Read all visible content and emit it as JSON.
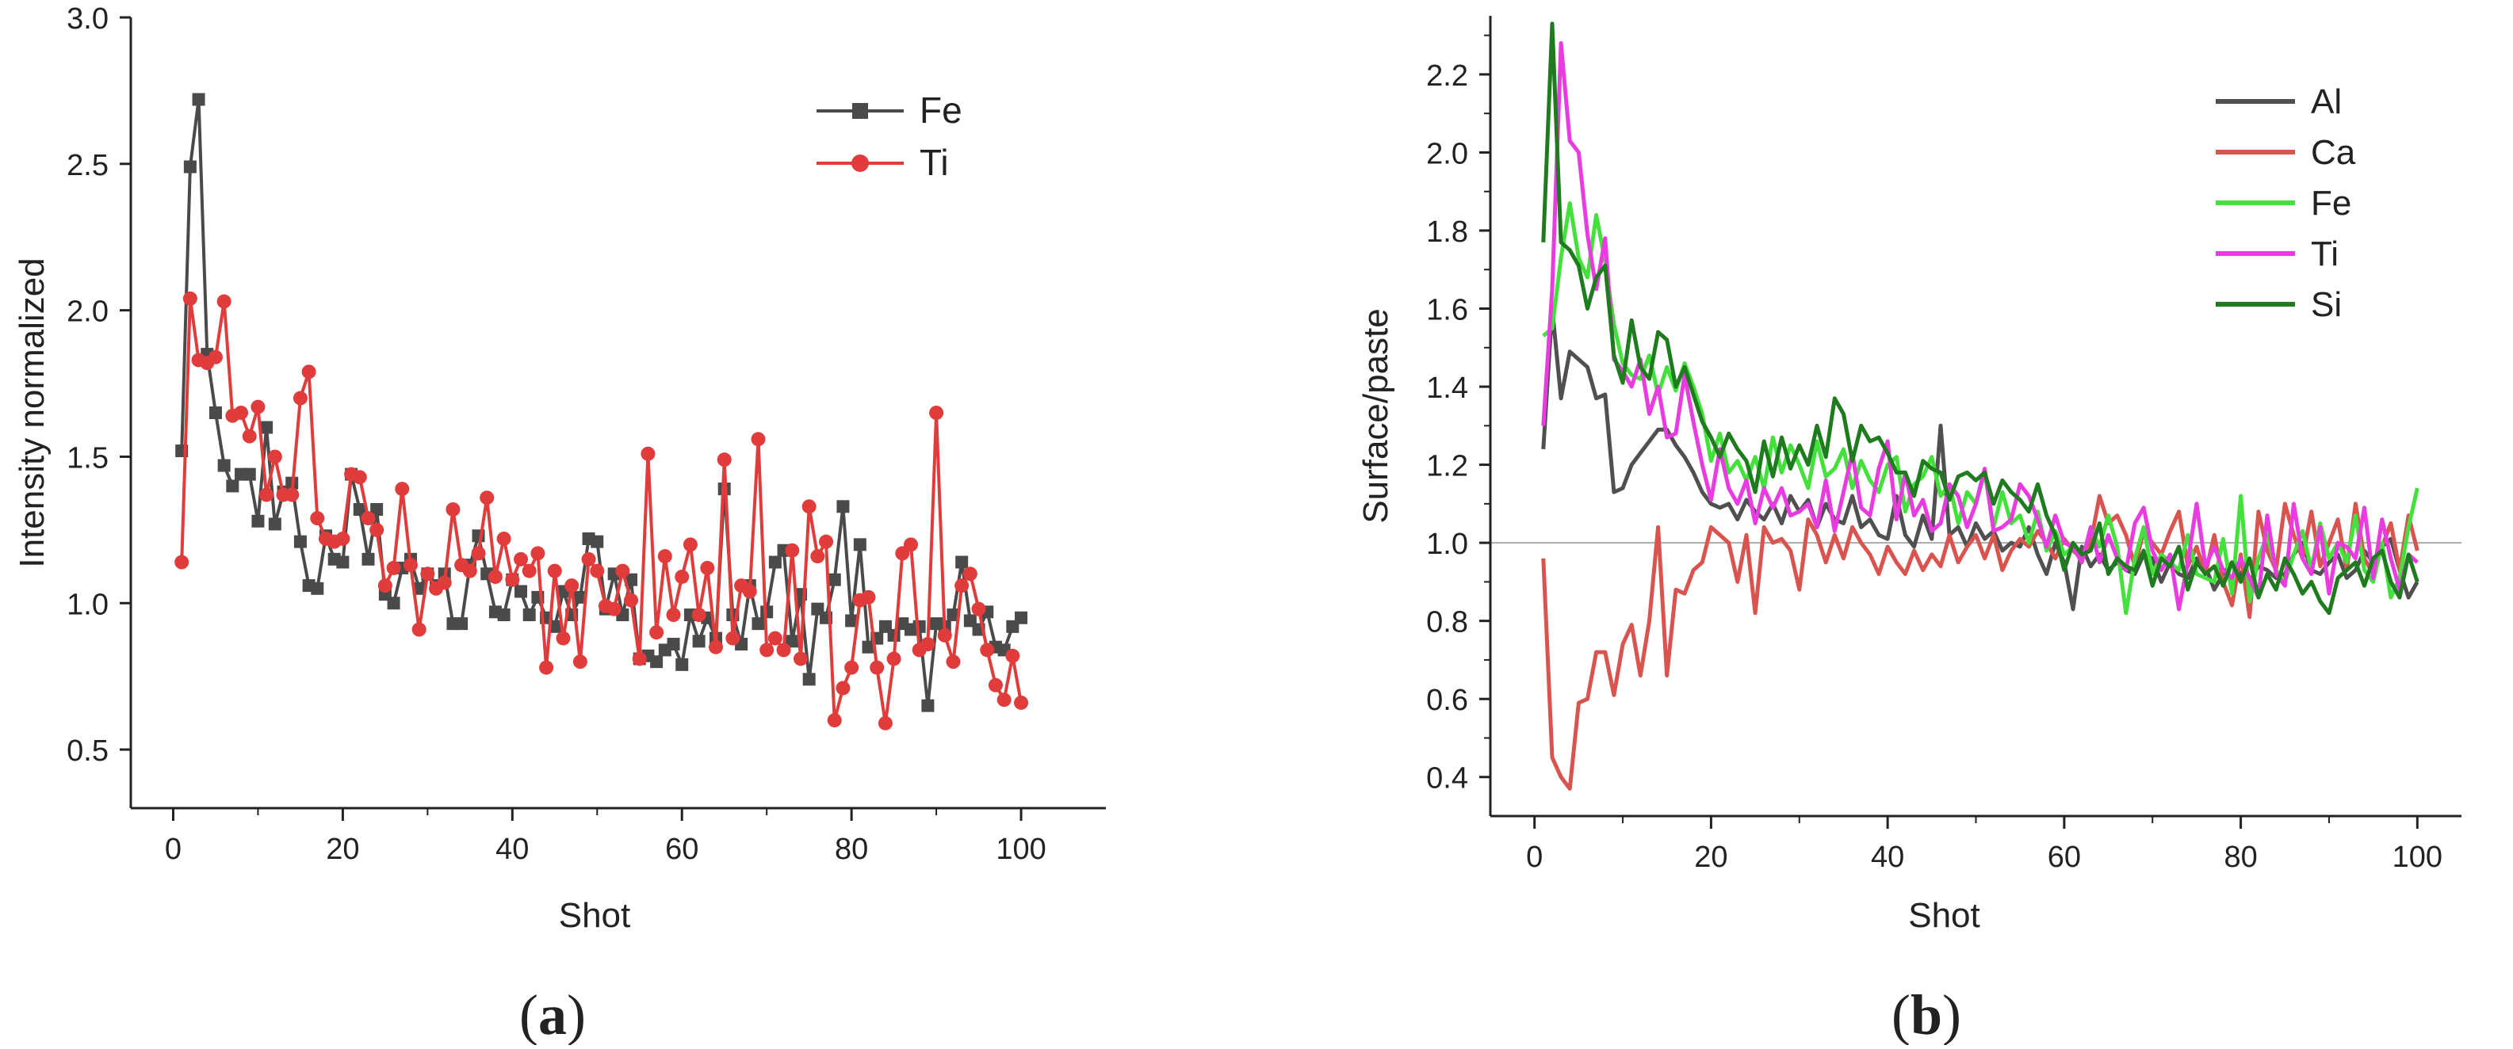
{
  "chart_data": [
    {
      "type": "line",
      "panel_label": "(a)",
      "panel_letter": "a",
      "xlabel": "Shot",
      "ylabel": "Intensity normalized",
      "xlim": [
        -5,
        110
      ],
      "ylim": [
        0.3,
        3.0
      ],
      "xticks": [
        0,
        20,
        40,
        60,
        80,
        100
      ],
      "xtick_labels": [
        "0",
        "20",
        "40",
        "60",
        "80",
        "100"
      ],
      "yticks": [
        0.5,
        1.0,
        1.5,
        2.0,
        2.5,
        3.0
      ],
      "ytick_labels": [
        "0.5",
        "1.0",
        "1.5",
        "2.0",
        "2.5",
        "3.0"
      ],
      "legend_position": "top-right",
      "x": [
        1,
        2,
        3,
        4,
        5,
        6,
        7,
        8,
        9,
        10,
        11,
        12,
        13,
        14,
        15,
        16,
        17,
        18,
        19,
        20,
        21,
        22,
        23,
        24,
        25,
        26,
        27,
        28,
        29,
        30,
        31,
        32,
        33,
        34,
        35,
        36,
        37,
        38,
        39,
        40,
        41,
        42,
        43,
        44,
        45,
        46,
        47,
        48,
        49,
        50,
        51,
        52,
        53,
        54,
        55,
        56,
        57,
        58,
        59,
        60,
        61,
        62,
        63,
        64,
        65,
        66,
        67,
        68,
        69,
        70,
        71,
        72,
        73,
        74,
        75,
        76,
        77,
        78,
        79,
        80,
        81,
        82,
        83,
        84,
        85,
        86,
        87,
        88,
        89,
        90,
        91,
        92,
        93,
        94,
        95,
        96,
        97,
        98,
        99,
        100
      ],
      "series": [
        {
          "name": "Fe",
          "color": "#4a4a4a",
          "marker": "square",
          "values": [
            1.52,
            2.49,
            2.72,
            1.85,
            1.65,
            1.47,
            1.4,
            1.44,
            1.44,
            1.28,
            1.6,
            1.27,
            1.38,
            1.41,
            1.21,
            1.06,
            1.05,
            1.23,
            1.15,
            1.14,
            1.44,
            1.32,
            1.15,
            1.32,
            1.03,
            1.0,
            1.12,
            1.15,
            1.05,
            1.1,
            1.06,
            1.1,
            0.93,
            0.93,
            1.13,
            1.23,
            1.1,
            0.97,
            0.96,
            1.08,
            1.04,
            0.96,
            1.02,
            0.95,
            0.92,
            1.04,
            0.96,
            1.02,
            1.22,
            1.21,
            0.98,
            1.1,
            0.96,
            1.08,
            0.81,
            0.82,
            0.8,
            0.84,
            0.86,
            0.79,
            0.96,
            0.87,
            0.95,
            0.88,
            1.39,
            0.96,
            0.86,
            1.06,
            0.93,
            0.97,
            1.14,
            1.18,
            0.87,
            1.03,
            0.74,
            0.98,
            0.95,
            1.08,
            1.33,
            0.94,
            1.2,
            0.85,
            0.88,
            0.92,
            0.89,
            0.93,
            0.91,
            0.92,
            0.65,
            0.93,
            0.92,
            0.96,
            1.14,
            0.94,
            0.91,
            0.97,
            0.85,
            0.84,
            0.92,
            0.95
          ]
        },
        {
          "name": "Ti",
          "color": "#e03c3c",
          "marker": "circle",
          "values": [
            1.14,
            2.04,
            1.83,
            1.82,
            1.84,
            2.03,
            1.64,
            1.65,
            1.57,
            1.67,
            1.37,
            1.5,
            1.37,
            1.37,
            1.7,
            1.79,
            1.29,
            1.22,
            1.21,
            1.22,
            1.44,
            1.43,
            1.29,
            1.25,
            1.06,
            1.12,
            1.39,
            1.13,
            0.91,
            1.1,
            1.05,
            1.07,
            1.32,
            1.13,
            1.11,
            1.17,
            1.36,
            1.09,
            1.22,
            1.08,
            1.15,
            1.11,
            1.17,
            0.78,
            1.11,
            0.88,
            1.06,
            0.8,
            1.15,
            1.11,
            0.99,
            0.98,
            1.11,
            1.01,
            0.81,
            1.51,
            0.9,
            1.16,
            0.96,
            1.09,
            1.2,
            0.96,
            1.12,
            0.85,
            1.49,
            0.88,
            1.06,
            1.04,
            1.56,
            0.84,
            0.88,
            0.84,
            1.18,
            0.81,
            1.33,
            1.16,
            1.21,
            0.6,
            0.71,
            0.78,
            1.01,
            1.02,
            0.78,
            0.59,
            0.81,
            1.17,
            1.2,
            0.84,
            0.86,
            1.65,
            0.89,
            0.8,
            1.06,
            1.1,
            0.98,
            0.84,
            0.72,
            0.67,
            0.82,
            0.66
          ]
        }
      ]
    },
    {
      "type": "line",
      "panel_label": "(b)",
      "panel_letter": "b",
      "xlabel": "Shot",
      "ylabel": "Surface/paste",
      "xlim": [
        -5,
        105
      ],
      "ylim": [
        0.3,
        2.35
      ],
      "xticks": [
        0,
        20,
        40,
        60,
        80,
        100
      ],
      "xtick_labels": [
        "0",
        "20",
        "40",
        "60",
        "80",
        "100"
      ],
      "yticks": [
        0.4,
        0.6,
        0.8,
        1.0,
        1.2,
        1.4,
        1.6,
        1.8,
        2.0,
        2.2
      ],
      "ytick_labels": [
        "0.4",
        "0.6",
        "0.8",
        "1.0",
        "1.2",
        "1.4",
        "1.6",
        "1.8",
        "2.0",
        "2.2"
      ],
      "reference_line_y": 1.0,
      "legend_position": "top-right",
      "x": [
        1,
        2,
        3,
        4,
        5,
        6,
        7,
        8,
        9,
        10,
        11,
        12,
        13,
        14,
        15,
        16,
        17,
        18,
        19,
        20,
        21,
        22,
        23,
        24,
        25,
        26,
        27,
        28,
        29,
        30,
        31,
        32,
        33,
        34,
        35,
        36,
        37,
        38,
        39,
        40,
        41,
        42,
        43,
        44,
        45,
        46,
        47,
        48,
        49,
        50,
        51,
        52,
        53,
        54,
        55,
        56,
        57,
        58,
        59,
        60,
        61,
        62,
        63,
        64,
        65,
        66,
        67,
        68,
        69,
        70,
        71,
        72,
        73,
        74,
        75,
        76,
        77,
        78,
        79,
        80,
        81,
        82,
        83,
        84,
        85,
        86,
        87,
        88,
        89,
        90,
        91,
        92,
        93,
        94,
        95,
        96,
        97,
        98,
        99,
        100
      ],
      "series": [
        {
          "name": "Al",
          "color": "#505050",
          "values": [
            1.24,
            1.6,
            1.37,
            1.49,
            1.47,
            1.45,
            1.37,
            1.38,
            1.13,
            1.14,
            1.2,
            1.23,
            1.26,
            1.29,
            1.29,
            1.25,
            1.22,
            1.18,
            1.13,
            1.1,
            1.09,
            1.1,
            1.06,
            1.11,
            1.08,
            1.06,
            1.1,
            1.05,
            1.12,
            1.08,
            1.11,
            1.04,
            1.1,
            1.06,
            1.05,
            1.12,
            1.04,
            1.06,
            1.02,
            1.01,
            1.12,
            1.02,
            0.99,
            1.07,
            1.01,
            1.3,
            1.02,
            1.04,
            0.99,
            1.05,
            1.01,
            1.03,
            0.98,
            1.0,
            0.99,
            1.04,
            0.97,
            0.92,
            1.0,
            0.95,
            0.83,
            0.99,
            0.94,
            0.97,
            0.93,
            0.95,
            0.93,
            0.92,
            0.97,
            0.96,
            0.9,
            0.95,
            0.92,
            0.91,
            0.96,
            0.94,
            0.88,
            0.92,
            0.95,
            0.92,
            0.9,
            0.94,
            0.93,
            0.91,
            0.92,
            0.97,
            1.0,
            0.93,
            0.92,
            0.95,
            0.97,
            0.91,
            0.93,
            0.98,
            0.95,
            0.99,
            1.01,
            0.93,
            0.86,
            0.9
          ]
        },
        {
          "name": "Ca",
          "color": "#d9534f",
          "values": [
            0.96,
            0.45,
            0.4,
            0.37,
            0.59,
            0.6,
            0.72,
            0.72,
            0.61,
            0.74,
            0.79,
            0.66,
            0.8,
            1.04,
            0.66,
            0.88,
            0.87,
            0.93,
            0.95,
            1.04,
            1.02,
            1.0,
            0.9,
            1.02,
            0.82,
            1.04,
            1.0,
            1.01,
            0.98,
            0.88,
            1.06,
            1.02,
            0.95,
            1.02,
            0.96,
            1.04,
            1.0,
            0.97,
            0.92,
            0.99,
            0.95,
            0.92,
            0.98,
            0.93,
            0.97,
            0.94,
            1.02,
            0.95,
            0.99,
            1.02,
            0.96,
            1.02,
            0.93,
            0.98,
            1.01,
            0.99,
            1.03,
            1.0,
            0.96,
            1.01,
            0.98,
            0.96,
            1.0,
            1.12,
            1.05,
            1.07,
            1.02,
            0.94,
            1.03,
            1.0,
            0.97,
            1.03,
            1.08,
            0.94,
            0.99,
            0.92,
            1.02,
            0.9,
            0.84,
            0.97,
            0.81,
            1.08,
            0.98,
            0.93,
            1.1,
            1.02,
            0.96,
            1.08,
            0.94,
            1.0,
            1.06,
            0.93,
            1.1,
            0.96,
            0.92,
            0.99,
            1.05,
            0.93,
            1.07,
            0.98
          ]
        },
        {
          "name": "Fe",
          "color": "#44e03c",
          "values": [
            1.53,
            1.55,
            1.73,
            1.87,
            1.73,
            1.68,
            1.84,
            1.72,
            1.56,
            1.46,
            1.43,
            1.42,
            1.48,
            1.38,
            1.45,
            1.39,
            1.46,
            1.4,
            1.33,
            1.21,
            1.28,
            1.18,
            1.21,
            1.16,
            1.22,
            1.14,
            1.27,
            1.18,
            1.25,
            1.2,
            1.14,
            1.26,
            1.17,
            1.19,
            1.24,
            1.14,
            1.21,
            1.16,
            1.13,
            1.2,
            1.22,
            1.08,
            1.15,
            1.17,
            1.22,
            1.12,
            1.15,
            1.05,
            1.13,
            1.1,
            1.18,
            1.04,
            1.13,
            1.05,
            1.07,
            1.0,
            1.08,
            0.98,
            1.03,
            0.97,
            0.99,
            0.95,
            1.04,
            0.99,
            1.07,
            0.99,
            0.82,
            0.96,
            1.04,
            0.92,
            0.97,
            0.95,
            0.93,
            1.02,
            0.92,
            0.91,
            0.9,
            1.01,
            0.87,
            1.12,
            0.85,
            0.96,
            1.02,
            0.93,
            0.9,
            0.97,
            1.03,
            0.93,
            1.05,
            0.96,
            1.0,
            0.95,
            1.07,
            0.93,
            0.9,
            1.0,
            0.86,
            0.91,
            1.04,
            1.14
          ]
        },
        {
          "name": "Ti",
          "color": "#e83ce0",
          "values": [
            1.3,
            1.65,
            2.28,
            2.03,
            2.0,
            1.79,
            1.65,
            1.78,
            1.47,
            1.44,
            1.4,
            1.47,
            1.33,
            1.4,
            1.27,
            1.28,
            1.43,
            1.31,
            1.2,
            1.11,
            1.24,
            1.14,
            1.1,
            1.16,
            1.05,
            1.14,
            1.09,
            1.14,
            1.07,
            1.08,
            1.1,
            1.04,
            1.16,
            1.03,
            1.13,
            1.23,
            1.09,
            1.07,
            1.19,
            1.26,
            1.06,
            1.18,
            1.07,
            1.11,
            1.03,
            1.05,
            1.15,
            1.12,
            1.04,
            1.1,
            1.19,
            1.03,
            1.04,
            1.06,
            1.15,
            1.12,
            1.06,
            0.99,
            1.07,
            1.0,
            0.99,
            0.95,
            1.04,
            0.95,
            1.02,
            0.96,
            0.93,
            1.05,
            1.09,
            0.98,
            0.93,
            0.97,
            0.83,
            0.95,
            1.1,
            0.94,
            0.99,
            0.93,
            0.91,
            0.96,
            0.91,
            0.86,
            1.07,
            0.92,
            0.89,
            1.1,
            0.96,
            0.92,
            1.04,
            0.87,
            1.0,
            0.99,
            0.96,
            1.09,
            0.91,
            1.06,
            0.96,
            0.88,
            0.97,
            0.95
          ]
        },
        {
          "name": "Si",
          "color": "#1e7b1e",
          "values": [
            1.77,
            2.33,
            1.77,
            1.75,
            1.71,
            1.6,
            1.68,
            1.71,
            1.48,
            1.41,
            1.57,
            1.45,
            1.42,
            1.54,
            1.52,
            1.4,
            1.45,
            1.38,
            1.31,
            1.27,
            1.22,
            1.28,
            1.24,
            1.21,
            1.13,
            1.26,
            1.17,
            1.27,
            1.19,
            1.25,
            1.2,
            1.3,
            1.22,
            1.37,
            1.33,
            1.21,
            1.3,
            1.26,
            1.27,
            1.23,
            1.18,
            1.18,
            1.12,
            1.21,
            1.19,
            1.18,
            1.11,
            1.17,
            1.18,
            1.16,
            1.18,
            1.1,
            1.16,
            1.13,
            1.11,
            1.08,
            1.15,
            1.07,
            1.02,
            0.93,
            1.0,
            0.97,
            0.98,
            1.05,
            0.92,
            0.96,
            0.94,
            0.93,
            0.98,
            0.89,
            0.96,
            0.94,
            0.99,
            0.88,
            0.95,
            0.92,
            0.94,
            0.89,
            0.95,
            0.9,
            0.96,
            0.86,
            0.92,
            0.88,
            0.96,
            0.92,
            0.87,
            0.9,
            0.85,
            0.82,
            0.91,
            0.93,
            0.95,
            0.89,
            0.96,
            0.98,
            0.9,
            0.86,
            0.97,
            0.9
          ]
        }
      ]
    }
  ]
}
